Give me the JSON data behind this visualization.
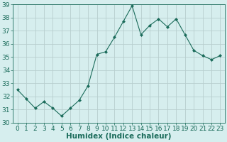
{
  "x": [
    0,
    1,
    2,
    3,
    4,
    5,
    6,
    7,
    8,
    9,
    10,
    11,
    12,
    13,
    14,
    15,
    16,
    17,
    18,
    19,
    20,
    21,
    22,
    23
  ],
  "y": [
    32.5,
    31.8,
    31.1,
    31.6,
    31.1,
    30.5,
    31.1,
    31.7,
    32.8,
    35.2,
    35.4,
    36.5,
    37.7,
    38.9,
    36.7,
    37.4,
    37.9,
    37.3,
    37.9,
    36.7,
    35.5,
    35.1,
    34.8,
    35.1
  ],
  "line_color": "#1a6b5a",
  "marker": "D",
  "marker_size": 2.0,
  "bg_color": "#d6eeee",
  "grid_color": "#b8cece",
  "xlabel": "Humidex (Indice chaleur)",
  "ylim": [
    30,
    39
  ],
  "xlim_min": -0.5,
  "xlim_max": 23.5,
  "yticks": [
    30,
    31,
    32,
    33,
    34,
    35,
    36,
    37,
    38,
    39
  ],
  "xticks": [
    0,
    1,
    2,
    3,
    4,
    5,
    6,
    7,
    8,
    9,
    10,
    11,
    12,
    13,
    14,
    15,
    16,
    17,
    18,
    19,
    20,
    21,
    22,
    23
  ],
  "tick_color": "#1a6b5a",
  "tick_fontsize": 6.5,
  "xlabel_fontsize": 7.5
}
